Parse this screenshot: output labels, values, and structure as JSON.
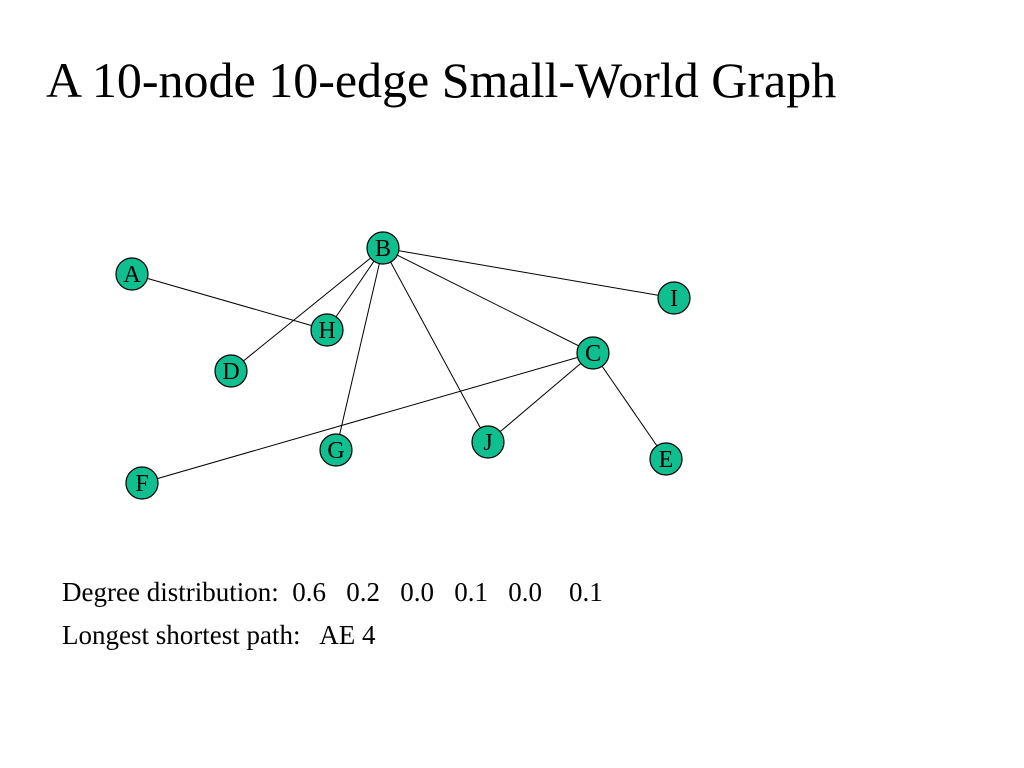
{
  "title": "A 10-node 10-edge Small-World Graph",
  "graph": {
    "node_fill": "#0fbf8f",
    "edge_color": "#000000",
    "nodes": [
      {
        "id": "A",
        "label": "A"
      },
      {
        "id": "B",
        "label": "B"
      },
      {
        "id": "C",
        "label": "C"
      },
      {
        "id": "D",
        "label": "D"
      },
      {
        "id": "E",
        "label": "E"
      },
      {
        "id": "F",
        "label": "F"
      },
      {
        "id": "G",
        "label": "G"
      },
      {
        "id": "H",
        "label": "H"
      },
      {
        "id": "I",
        "label": "I"
      },
      {
        "id": "J",
        "label": "J"
      }
    ],
    "edges": [
      [
        "A",
        "H"
      ],
      [
        "B",
        "H"
      ],
      [
        "B",
        "D"
      ],
      [
        "B",
        "G"
      ],
      [
        "B",
        "J"
      ],
      [
        "B",
        "C"
      ],
      [
        "B",
        "I"
      ],
      [
        "C",
        "F"
      ],
      [
        "C",
        "J"
      ],
      [
        "C",
        "E"
      ]
    ]
  },
  "stats": {
    "degree_label": "Degree distribution:",
    "degree_values": [
      "0.6",
      "0.2",
      "0.0",
      "0.1",
      "0.0",
      "0.1"
    ],
    "path_label": "Longest shortest path:",
    "path_value": "AE 4"
  }
}
